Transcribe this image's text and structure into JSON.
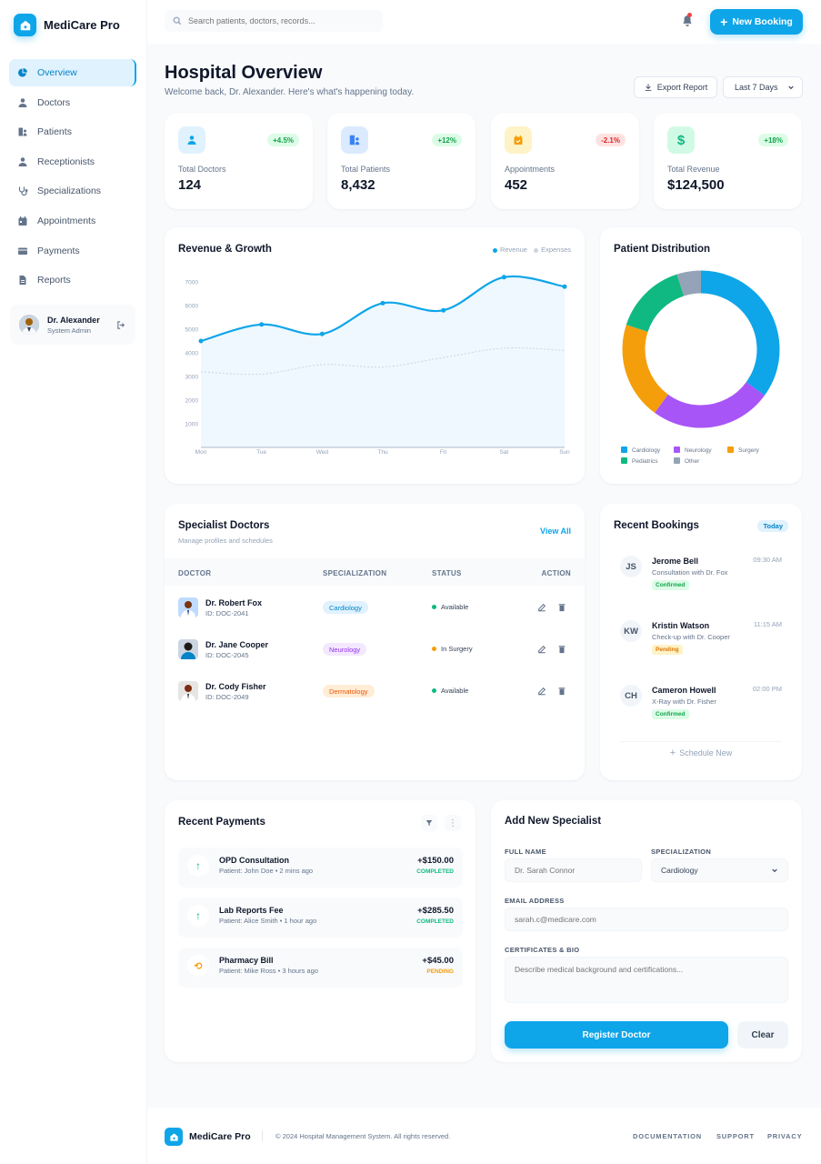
{
  "app": {
    "name": "MediCare Pro"
  },
  "sidebar": {
    "items": [
      {
        "label": "Overview",
        "icon": "pie-chart-icon"
      },
      {
        "label": "Doctors",
        "icon": "user-doctor-icon"
      },
      {
        "label": "Patients",
        "icon": "users-icon"
      },
      {
        "label": "Receptionists",
        "icon": "user-icon"
      },
      {
        "label": "Specializations",
        "icon": "stethoscope-icon"
      },
      {
        "label": "Appointments",
        "icon": "calendar-icon"
      },
      {
        "label": "Payments",
        "icon": "wallet-icon"
      },
      {
        "label": "Reports",
        "icon": "file-icon"
      }
    ],
    "user": {
      "name": "Dr. Alexander",
      "role": "System Admin"
    }
  },
  "header": {
    "search_placeholder": "Search patients, doctors, records...",
    "new_booking": "New Booking"
  },
  "page": {
    "title": "Hospital Overview",
    "subtitle": "Welcome back, Dr. Alexander. Here's what's happening today.",
    "export_label": "Export Report",
    "range_selected": "Last 7 Days"
  },
  "stats": [
    {
      "label": "Total Doctors",
      "value": "124",
      "delta": "+4.5%",
      "color": "#0ea5e9"
    },
    {
      "label": "Total Patients",
      "value": "8,432",
      "delta": "+12%",
      "color": "#3b82f6"
    },
    {
      "label": "Appointments",
      "value": "452",
      "delta": "-2.1%",
      "color": "#f59e0b"
    },
    {
      "label": "Total Revenue",
      "value": "$124,500",
      "delta": "+18%",
      "color": "#10b981"
    }
  ],
  "revenue_chart": {
    "title": "Revenue & Growth",
    "legend": [
      "Revenue",
      "Expenses"
    ]
  },
  "distribution": {
    "title": "Patient Distribution"
  },
  "chart_data": [
    {
      "type": "line",
      "title": "Revenue & Growth",
      "x": [
        "Mon",
        "Tue",
        "Wed",
        "Thu",
        "Fri",
        "Sat",
        "Sun"
      ],
      "yticks": [
        "0",
        "1000",
        "2000",
        "3000",
        "4000",
        "5000",
        "6000",
        "7000"
      ],
      "ylim": [
        0,
        7000
      ],
      "series": [
        {
          "name": "Revenue",
          "values": [
            4500,
            5200,
            4800,
            6100,
            5800,
            7200,
            6800
          ],
          "color": "#0ea5e9"
        },
        {
          "name": "Expenses",
          "values": [
            3200,
            3100,
            3500,
            3400,
            3800,
            4200,
            4100
          ],
          "color": "#cbd5e1"
        }
      ],
      "legend_position": "top-right"
    },
    {
      "type": "pie",
      "title": "Patient Distribution",
      "categories": [
        "Cardiology",
        "Neurology",
        "Surgery",
        "Pediatrics",
        "Other"
      ],
      "values": [
        35,
        25,
        20,
        15,
        5
      ],
      "colors": [
        "#0ea5e9",
        "#a855f7",
        "#f59e0b",
        "#10b981",
        "#94a3b8"
      ],
      "legend_position": "bottom"
    }
  ],
  "specialists": {
    "title": "Specialist Doctors",
    "subtitle": "Manage profiles and schedules",
    "view_all": "View All",
    "columns": [
      "DOCTOR",
      "SPECIALIZATION",
      "STATUS",
      "ACTION"
    ],
    "rows": [
      {
        "name": "Dr. Robert Fox",
        "id": "ID: DOC-2041",
        "spec": "Cardiology",
        "status": "Available"
      },
      {
        "name": "Dr. Jane Cooper",
        "id": "ID: DOC-2045",
        "spec": "Neurology",
        "status": "In Surgery"
      },
      {
        "name": "Dr. Cody Fisher",
        "id": "ID: DOC-2049",
        "spec": "Dermatology",
        "status": "Available"
      }
    ]
  },
  "bookings": {
    "title": "Recent Bookings",
    "badge": "Today",
    "items": [
      {
        "initials": "JS",
        "name": "Jerome Bell",
        "desc": "Consultation with Dr. Fox",
        "time": "09:30 AM",
        "status": "Confirmed"
      },
      {
        "initials": "KW",
        "name": "Kristin Watson",
        "desc": "Check-up with Dr. Cooper",
        "time": "11:15 AM",
        "status": "Pending"
      },
      {
        "initials": "CH",
        "name": "Cameron Howell",
        "desc": "X-Ray with Dr. Fisher",
        "time": "02:00 PM",
        "status": "Confirmed"
      }
    ],
    "schedule_new": "Schedule New"
  },
  "payments": {
    "title": "Recent Payments",
    "items": [
      {
        "title": "OPD Consultation",
        "sub": "Patient: John Doe • 2 mins ago",
        "amount": "+$150.00",
        "status": "COMPLETED"
      },
      {
        "title": "Lab Reports Fee",
        "sub": "Patient: Alice Smith • 1 hour ago",
        "amount": "+$285.50",
        "status": "COMPLETED"
      },
      {
        "title": "Pharmacy Bill",
        "sub": "Patient: Mike Ross • 3 hours ago",
        "amount": "+$45.00",
        "status": "PENDING"
      }
    ]
  },
  "form": {
    "title": "Add New Specialist",
    "full_name_label": "FULL NAME",
    "full_name_placeholder": "Dr. Sarah Connor",
    "spec_label": "SPECIALIZATION",
    "spec_selected": "Cardiology",
    "email_label": "EMAIL ADDRESS",
    "email_placeholder": "sarah.c@medicare.com",
    "bio_label": "CERTIFICATES & BIO",
    "bio_placeholder": "Describe medical background and certifications...",
    "submit": "Register Doctor",
    "clear": "Clear"
  },
  "footer": {
    "brand": "MediCare Pro",
    "copyright": "© 2024 Hospital Management System. All rights reserved.",
    "links": [
      "DOCUMENTATION",
      "SUPPORT",
      "PRIVACY"
    ]
  }
}
